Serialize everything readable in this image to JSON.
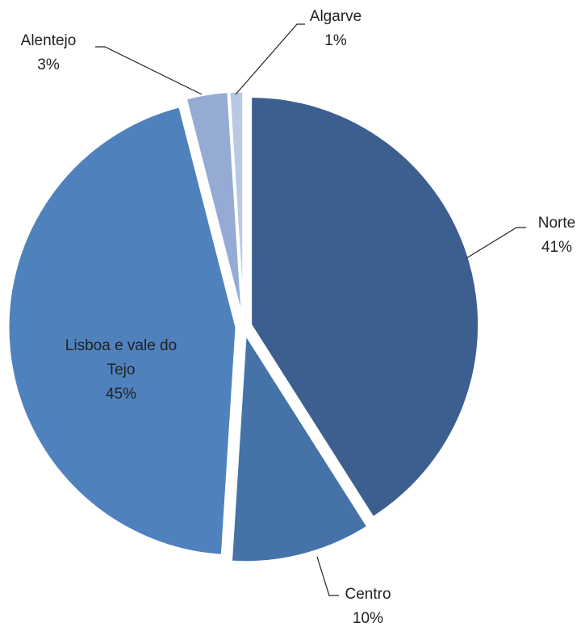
{
  "chart_data": {
    "type": "pie",
    "categories": [
      "Norte",
      "Centro",
      "Lisboa e vale do Tejo",
      "Alentejo",
      "Algarve"
    ],
    "values": [
      41,
      10,
      45,
      3,
      1
    ],
    "value_labels": [
      "41%",
      "10%",
      "45%",
      "3%",
      "1%"
    ],
    "colors": [
      "#3c5f8f",
      "#4573a8",
      "#4f81bd",
      "#95abd4",
      "#b9c9e4"
    ]
  }
}
